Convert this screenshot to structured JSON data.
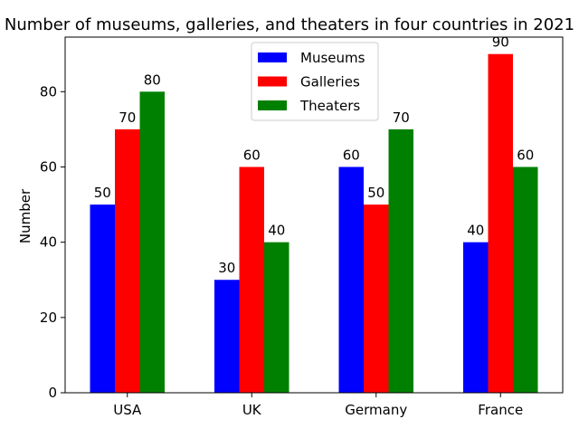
{
  "chart_data": {
    "type": "bar",
    "title": "Number of museums, galleries, and theaters in four countries in 2021",
    "xlabel": "",
    "ylabel": "Number",
    "categories": [
      "USA",
      "UK",
      "Germany",
      "France"
    ],
    "series": [
      {
        "name": "Museums",
        "values": [
          50,
          30,
          60,
          40
        ],
        "color": "#0000ff"
      },
      {
        "name": "Galleries",
        "values": [
          70,
          60,
          50,
          90
        ],
        "color": "#ff0000"
      },
      {
        "name": "Theaters",
        "values": [
          80,
          40,
          70,
          60
        ],
        "color": "#008000"
      }
    ],
    "ylim": [
      0,
      94.5
    ],
    "yticks": [
      0,
      20,
      40,
      60,
      80
    ],
    "grid": false,
    "legend_position": "top-center"
  }
}
